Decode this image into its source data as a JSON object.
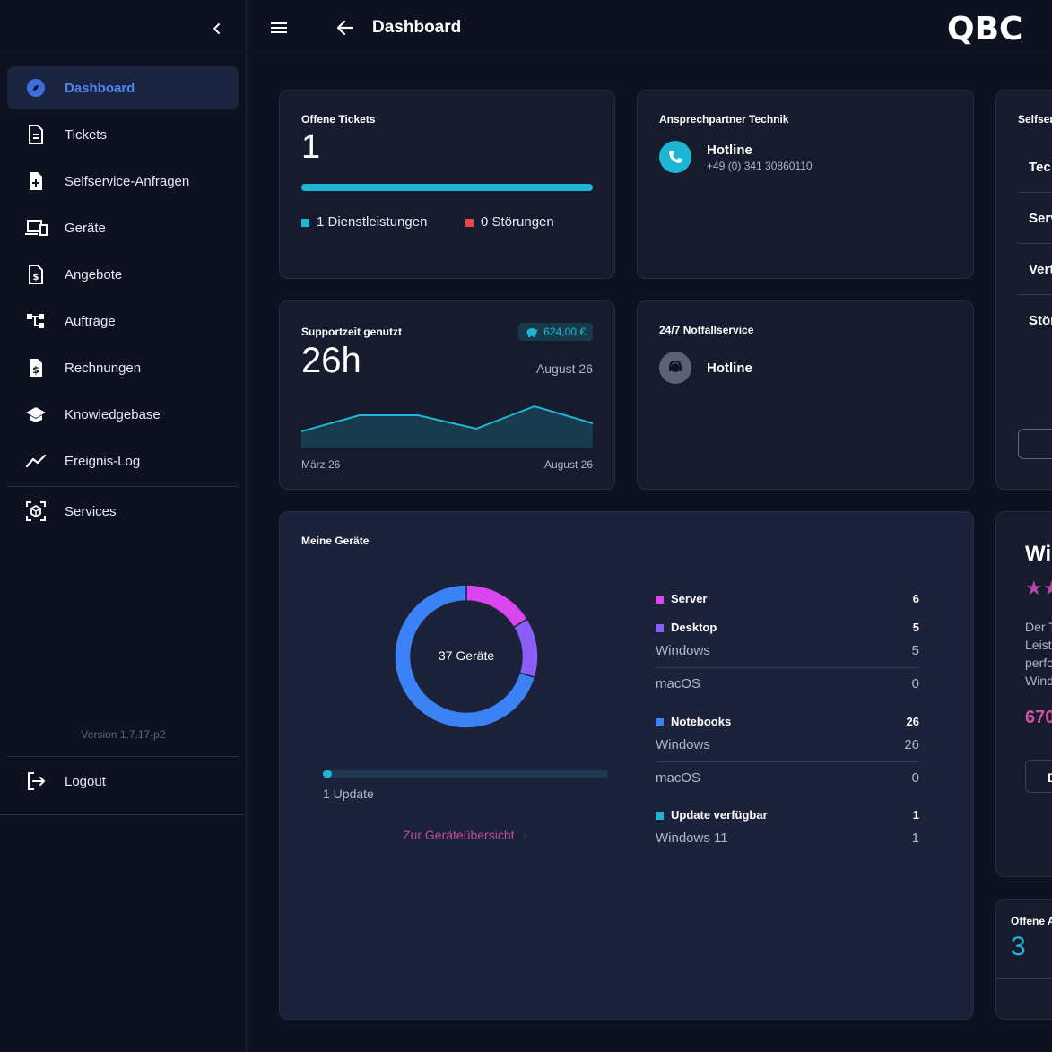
{
  "sidebar": {
    "items": [
      {
        "label": "Dashboard",
        "icon": "compass-icon",
        "active": true
      },
      {
        "label": "Tickets",
        "icon": "document-icon"
      },
      {
        "label": "Selfservice-Anfragen",
        "icon": "file-plus-icon"
      },
      {
        "label": "Geräte",
        "icon": "devices-icon"
      },
      {
        "label": "Angebote",
        "icon": "file-dollar-icon"
      },
      {
        "label": "Aufträge",
        "icon": "hierarchy-icon"
      },
      {
        "label": "Rechnungen",
        "icon": "invoice-icon"
      },
      {
        "label": "Knowledgebase",
        "icon": "graduation-cap-icon"
      },
      {
        "label": "Ereignis-Log",
        "icon": "trend-line-icon"
      },
      {
        "label": "Services",
        "icon": "cube-scan-icon"
      }
    ],
    "version": "Version 1.7.17-p2",
    "logout_label": "Logout"
  },
  "topbar": {
    "title": "Dashboard",
    "logo_text": "QBC"
  },
  "tickets_card": {
    "title": "Offene Tickets",
    "count": "1",
    "progress": 1.0,
    "legend": [
      {
        "label": "1 Dienstleistungen",
        "color": "#1fb6d6"
      },
      {
        "label": "0 Störungen",
        "color": "#e84545"
      }
    ]
  },
  "contact_card": {
    "title": "Ansprechpartner Technik",
    "name": "Hotline",
    "phone": "+49 (0) 341 30860110"
  },
  "selfservice_card": {
    "title": "Selfser",
    "items": [
      "Tec",
      "Serv",
      "Vert",
      "Stör"
    ]
  },
  "support_card": {
    "title": "Supportzeit genutzt",
    "badge": "624,00 €",
    "hours": "26h",
    "month": "August 26",
    "start_label": "März 26",
    "end_label": "August 26",
    "spark": [
      18,
      36,
      36,
      21,
      46,
      27
    ]
  },
  "emergency_card": {
    "title": "24/7 Notfallservice",
    "name": "Hotline"
  },
  "devices_card": {
    "title": "Meine Geräte",
    "center_label": "37 Geräte",
    "update_label": "1 Update",
    "update_progress": 0.03,
    "link": "Zur Geräteübersicht",
    "donut": [
      {
        "name": "Server",
        "value": 6,
        "color": "#d946ef"
      },
      {
        "name": "Desktop",
        "value": 5,
        "color": "#8b5cf6"
      },
      {
        "name": "Notebooks",
        "value": 26,
        "color": "#3b82f6"
      }
    ],
    "groups": [
      {
        "name": "Server",
        "count": "6",
        "color": "#d946ef",
        "rows": []
      },
      {
        "name": "Desktop",
        "count": "5",
        "color": "#8b5cf6",
        "rows": [
          {
            "label": "Windows",
            "value": "5"
          },
          {
            "label": "macOS",
            "value": "0"
          }
        ]
      },
      {
        "name": "Notebooks",
        "count": "26",
        "color": "#3b82f6",
        "rows": [
          {
            "label": "Windows",
            "value": "26"
          },
          {
            "label": "macOS",
            "value": "0"
          }
        ]
      },
      {
        "name": "Update verfügbar",
        "count": "1",
        "color": "#1fb6d6",
        "rows": [
          {
            "label": "Windows 11",
            "value": "1"
          }
        ]
      }
    ]
  },
  "promo_card": {
    "title": "Wi",
    "text_lines": [
      "Der T",
      "Leist",
      "perfo",
      "Wind"
    ],
    "price": "670",
    "button": "D"
  },
  "offers_card": {
    "title": "Offene A",
    "count": "3"
  },
  "colors": {
    "accent": "#1fb6d6",
    "active_nav": "#4f86f7",
    "link": "#c04a9f"
  }
}
